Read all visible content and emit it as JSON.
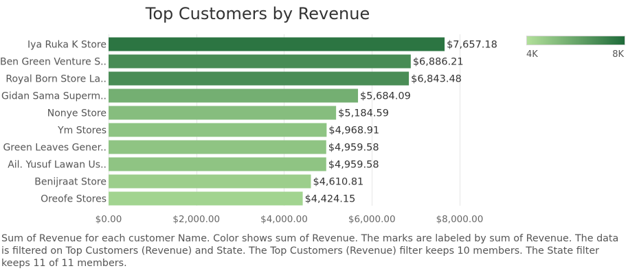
{
  "chart_data": {
    "type": "bar",
    "orientation": "horizontal",
    "title": "Top Customers by Revenue",
    "xlabel": "",
    "ylabel": "",
    "categories": [
      "Iya Ruka K Store",
      "Ben Green Venture S..",
      "Royal Born Store La..",
      "Gidan Sama Superm..",
      "Nonye Store",
      "Ym Stores",
      "Green Leaves Gener..",
      "Ail. Yusuf Lawan Us..",
      "Benijraat  Store",
      "Oreofe Stores"
    ],
    "values": [
      7657.18,
      6886.21,
      6843.48,
      5684.09,
      5184.59,
      4968.91,
      4959.58,
      4959.58,
      4610.81,
      4424.15
    ],
    "value_labels": [
      "$7,657.18",
      "$6,886.21",
      "$6,843.48",
      "$5,684.09",
      "$5,184.59",
      "$4,968.91",
      "$4,959.58",
      "$4,959.58",
      "$4,610.81",
      "$4,424.15"
    ],
    "xlim": [
      0,
      9300
    ],
    "x_ticks": [
      0,
      2000,
      4000,
      6000,
      8000
    ],
    "x_tick_labels": [
      "$0.00",
      "$2,000.00",
      "$4,000.00",
      "$6,000.00",
      "$8,000.00"
    ],
    "grid": true,
    "color_scale": {
      "min_value": 4000,
      "max_value": 8000,
      "min_color": "#b2e09a",
      "max_color": "#1f6b3a",
      "min_label": "4K",
      "max_label": "8K"
    },
    "legend_position": "top-right"
  },
  "caption": "Sum of Revenue for each customer Name.  Color shows sum of Revenue.  The marks are labeled by sum of Revenue. The data is filtered on Top Customers (Revenue) and State. The Top Customers (Revenue) filter keeps 10 members. The State filter keeps 11 of 11 members."
}
